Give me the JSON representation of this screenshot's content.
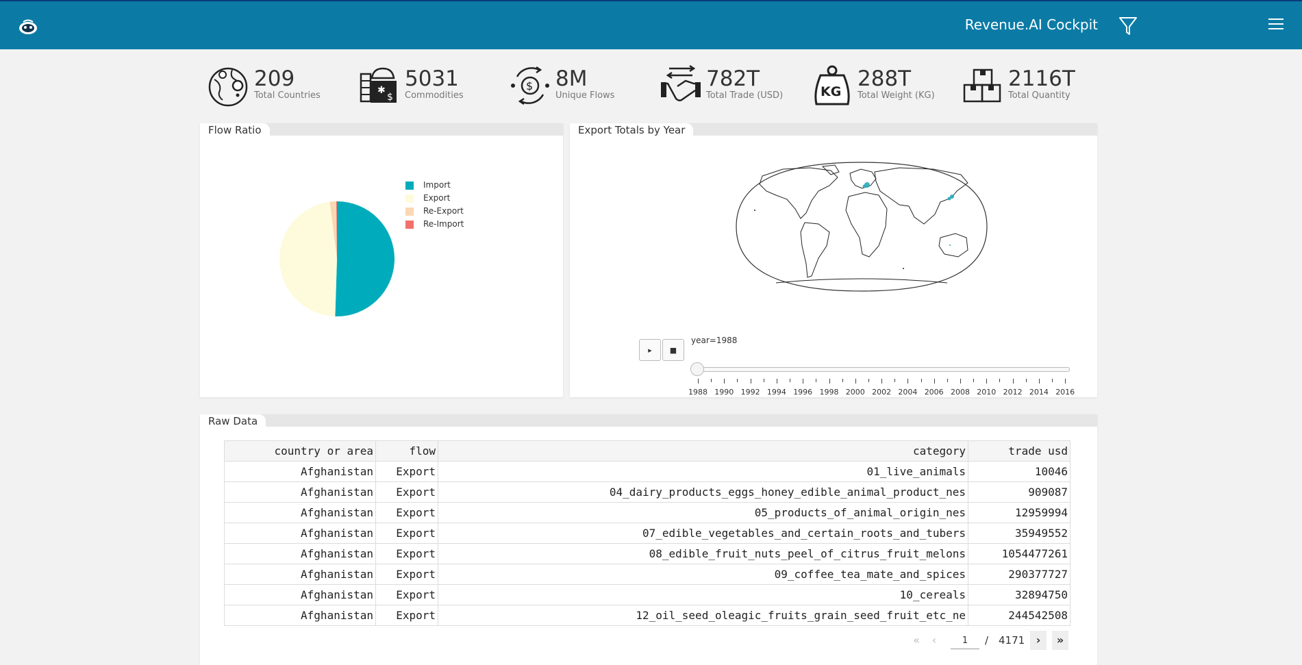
{
  "header": {
    "app_title": "Revenue.AI Cockpit",
    "logo_icon": "robot-logo-icon",
    "filter_icon": "filter-icon",
    "menu_icon": "hamburger-menu-icon"
  },
  "kpis": [
    {
      "value": "209",
      "label": "Total Countries",
      "icon": "globe-pin-icon"
    },
    {
      "value": "5031",
      "label": "Commodities",
      "icon": "commodities-icon"
    },
    {
      "value": "8M",
      "label": "Unique Flows",
      "icon": "money-flow-icon"
    },
    {
      "value": "782T",
      "label": "Total Trade (USD)",
      "icon": "handshake-icon"
    },
    {
      "value": "288T",
      "label": "Total Weight (KG)",
      "icon": "kg-weight-icon"
    },
    {
      "value": "2116T",
      "label": "Total Quantity",
      "icon": "boxes-icon"
    }
  ],
  "flow_ratio": {
    "title": "Flow Ratio",
    "chart_data": {
      "type": "pie",
      "categories": [
        "Import",
        "Export",
        "Re-Export",
        "Re-Import"
      ],
      "values": [
        50.5,
        47.5,
        1.8,
        0.2
      ],
      "colors": [
        "#00acbb",
        "#fdfbdc",
        "#fcd7b3",
        "#f2716a"
      ],
      "legend": "top-right"
    }
  },
  "export_map": {
    "title": "Export Totals by Year",
    "map_type": "natural earth world map",
    "slider_label": "year=1988",
    "play_label": "▸",
    "stop_label": "■",
    "years": [
      "1988",
      "1990",
      "1992",
      "1994",
      "1996",
      "1998",
      "2000",
      "2002",
      "2004",
      "2006",
      "2008",
      "2010",
      "2012",
      "2014",
      "2016"
    ],
    "marker_color": "#2aaab9"
  },
  "raw_data": {
    "title": "Raw Data",
    "columns": [
      "country or area",
      "flow",
      "category",
      "trade usd"
    ],
    "rows": [
      [
        "Afghanistan",
        "Export",
        "01_live_animals",
        "10046"
      ],
      [
        "Afghanistan",
        "Export",
        "04_dairy_products_eggs_honey_edible_animal_product_nes",
        "909087"
      ],
      [
        "Afghanistan",
        "Export",
        "05_products_of_animal_origin_nes",
        "12959994"
      ],
      [
        "Afghanistan",
        "Export",
        "07_edible_vegetables_and_certain_roots_and_tubers",
        "35949552"
      ],
      [
        "Afghanistan",
        "Export",
        "08_edible_fruit_nuts_peel_of_citrus_fruit_melons",
        "1054477261"
      ],
      [
        "Afghanistan",
        "Export",
        "09_coffee_tea_mate_and_spices",
        "290377727"
      ],
      [
        "Afghanistan",
        "Export",
        "10_cereals",
        "32894750"
      ],
      [
        "Afghanistan",
        "Export",
        "12_oil_seed_oleagic_fruits_grain_seed_fruit_etc_ne",
        "244542508"
      ]
    ],
    "pager": {
      "first": "«",
      "prev": "‹",
      "page": "1",
      "separator": "/",
      "total": "4171",
      "next": "›",
      "last": "»"
    }
  }
}
